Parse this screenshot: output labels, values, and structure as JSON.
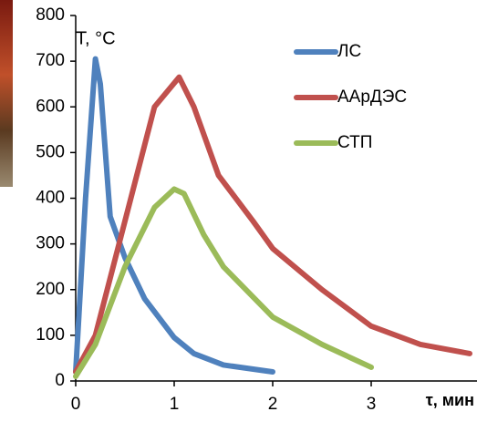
{
  "chart_data": {
    "type": "line",
    "y_label": "Т, °C",
    "x_label": "τ, мин",
    "xlim": [
      0,
      4
    ],
    "xticks": [
      0,
      1,
      2,
      3
    ],
    "ylim": [
      0,
      800
    ],
    "yticks": [
      0,
      100,
      200,
      300,
      400,
      500,
      600,
      700,
      800
    ],
    "legend": "top-right",
    "series": [
      {
        "name": "ЛС",
        "color": "#4f81bd",
        "x": [
          0,
          0.1,
          0.2,
          0.25,
          0.35,
          0.5,
          0.7,
          1,
          1.2,
          1.5,
          2
        ],
        "values": [
          20,
          400,
          705,
          650,
          360,
          270,
          180,
          95,
          60,
          35,
          20
        ]
      },
      {
        "name": "ААрДЭС",
        "color": "#c0504d",
        "x": [
          0,
          0.2,
          0.5,
          0.8,
          1.05,
          1.2,
          1.45,
          1.8,
          2,
          2.5,
          3,
          3.5,
          4
        ],
        "values": [
          20,
          100,
          350,
          600,
          665,
          600,
          450,
          350,
          290,
          200,
          120,
          80,
          60
        ]
      },
      {
        "name": "СТП",
        "color": "#9bbb59",
        "x": [
          0,
          0.2,
          0.5,
          0.8,
          1,
          1.1,
          1.3,
          1.5,
          2,
          2.5,
          3
        ],
        "values": [
          10,
          80,
          250,
          380,
          420,
          410,
          320,
          250,
          140,
          80,
          30
        ]
      }
    ]
  }
}
